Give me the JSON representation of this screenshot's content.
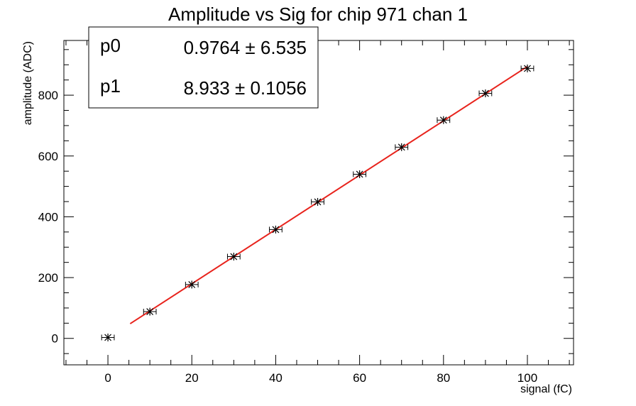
{
  "chart_data": {
    "type": "scatter",
    "title": "Amplitude vs Sig for chip 971 chan 1",
    "xlabel": "signal (fC)",
    "ylabel": "amplitude (ADC)",
    "xlim": [
      -10.5,
      111
    ],
    "ylim": [
      -87,
      980
    ],
    "x_ticks": [
      0,
      20,
      40,
      60,
      80,
      100
    ],
    "x_tick_labels": [
      "0",
      "20",
      "40",
      "60",
      "80",
      "100"
    ],
    "y_ticks": [
      0,
      200,
      400,
      600,
      800
    ],
    "y_tick_labels": [
      "0",
      "200",
      "400",
      "600",
      "800"
    ],
    "x_error": 1.5,
    "points": [
      {
        "x": 0,
        "y": 3
      },
      {
        "x": 10,
        "y": 88
      },
      {
        "x": 20,
        "y": 177
      },
      {
        "x": 30,
        "y": 269
      },
      {
        "x": 40,
        "y": 358
      },
      {
        "x": 50,
        "y": 449
      },
      {
        "x": 60,
        "y": 540
      },
      {
        "x": 70,
        "y": 629
      },
      {
        "x": 80,
        "y": 718
      },
      {
        "x": 90,
        "y": 806
      },
      {
        "x": 100,
        "y": 888
      }
    ],
    "fit": {
      "x_range": [
        5.3,
        100
      ],
      "color": "#e8231c",
      "params": [
        {
          "name": "p0",
          "value": "0.9764",
          "error": "6.535",
          "coef": 0.9764
        },
        {
          "name": "p1",
          "value": "8.933",
          "error": "0.1056",
          "coef": 8.933
        }
      ]
    },
    "stats_box_placement": "top-left",
    "grid": false,
    "marker_color": "#000000"
  }
}
